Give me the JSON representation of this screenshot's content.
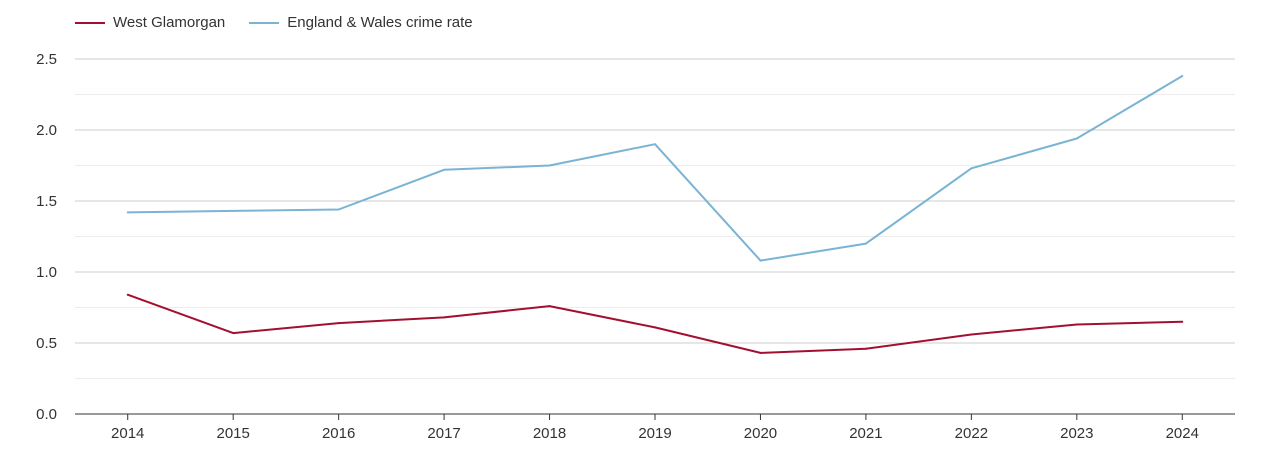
{
  "chart_data": {
    "type": "line",
    "title": "",
    "xlabel": "",
    "ylabel": "",
    "categories": [
      "2014",
      "2015",
      "2016",
      "2017",
      "2018",
      "2019",
      "2020",
      "2021",
      "2022",
      "2023",
      "2024"
    ],
    "series": [
      {
        "name": "West Glamorgan",
        "color": "#a3102f",
        "values": [
          0.84,
          0.57,
          0.64,
          0.68,
          0.76,
          0.61,
          0.43,
          0.46,
          0.56,
          0.63,
          0.65
        ]
      },
      {
        "name": "England & Wales crime rate",
        "color": "#7ab3d4",
        "values": [
          1.42,
          1.43,
          1.44,
          1.72,
          1.75,
          1.9,
          1.08,
          1.2,
          1.73,
          1.94,
          2.38
        ]
      }
    ],
    "y_ticks": [
      "0.0",
      "0.5",
      "1.0",
      "1.5",
      "2.0",
      "2.5"
    ],
    "ylim": [
      0,
      2.5
    ],
    "grid": true,
    "legend_position": "top-left"
  }
}
